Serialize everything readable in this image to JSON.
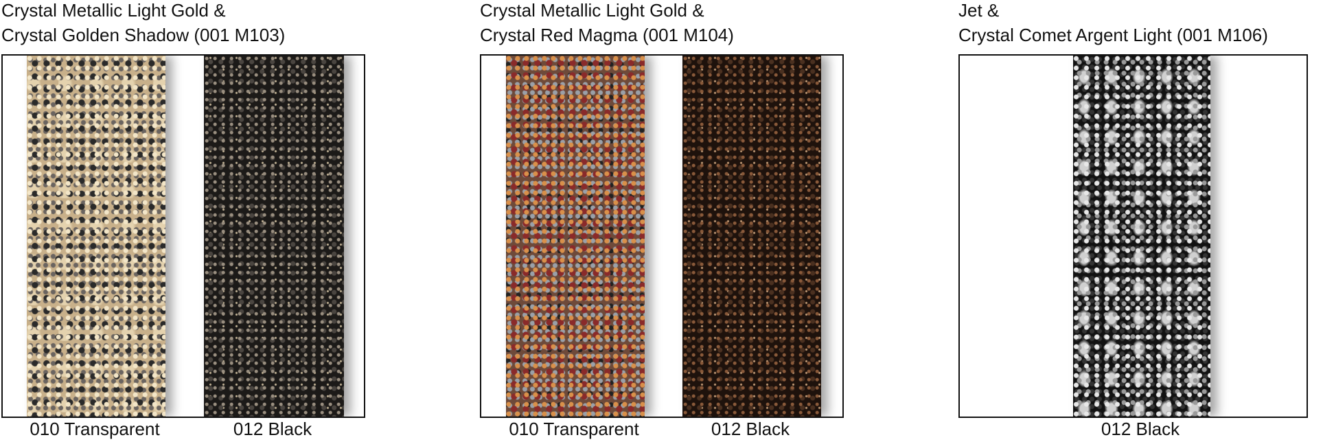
{
  "panels": [
    {
      "title_lines": [
        "Crystal Metallic Light Gold &",
        "Crystal Golden Shadow (001 M103)"
      ],
      "swatches": [
        {
          "label": "010 Transparent"
        },
        {
          "label": "012 Black"
        }
      ]
    },
    {
      "title_lines": [
        "Crystal Metallic Light Gold &",
        "Crystal Red Magma (001 M104)"
      ],
      "swatches": [
        {
          "label": "010 Transparent"
        },
        {
          "label": "012 Black"
        }
      ]
    },
    {
      "title_lines": [
        "Jet &",
        "Crystal Comet Argent Light (001 M106)"
      ],
      "swatches": [
        {
          "label": "012 Black"
        }
      ]
    }
  ]
}
